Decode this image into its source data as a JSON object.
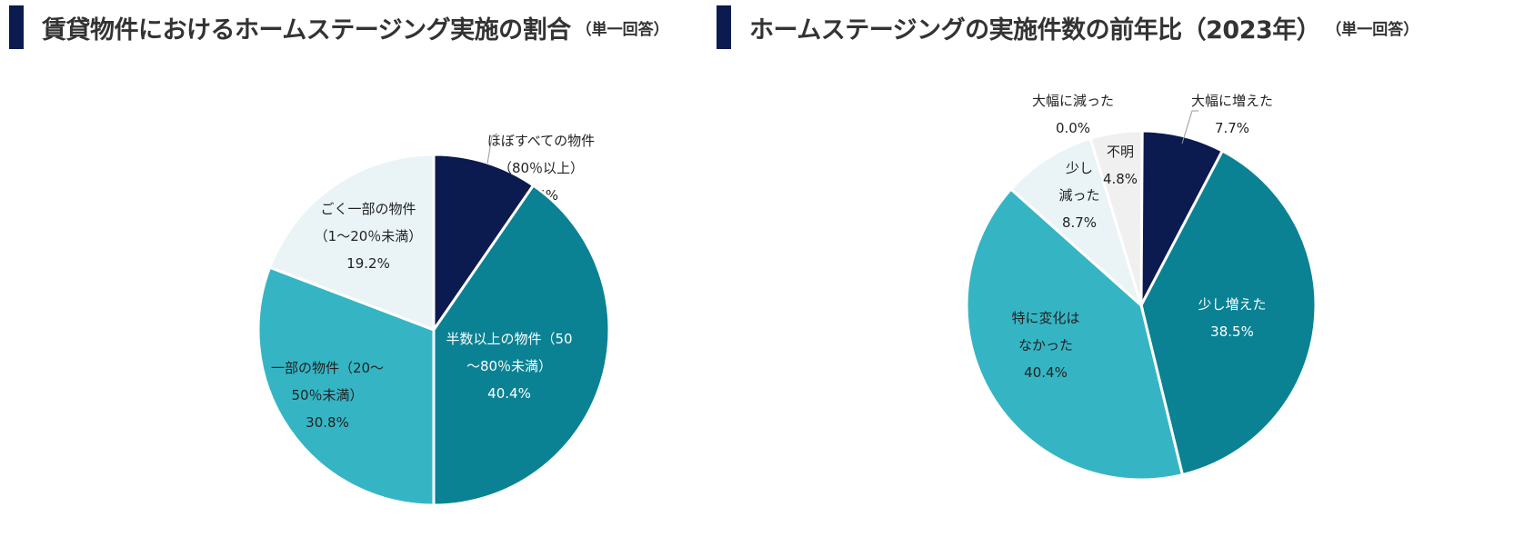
{
  "colors": {
    "navy": "#0b1a4f",
    "dark_teal": "#0a8294",
    "light_teal": "#35b5c4",
    "pale": "#eaf4f7",
    "grey": "#f0f0f0"
  },
  "chart_data": [
    {
      "type": "pie",
      "title": "賃貸物件におけるホームステージング実施の割合",
      "subtitle": "（単一回答）",
      "slices": [
        {
          "label": [
            "ほぼすべての物件",
            "（80％以上）"
          ],
          "value": 9.6,
          "value_label": "9.6%",
          "color": "#0b1a4f"
        },
        {
          "label": [
            "半数以上の物件（50",
            "～80％未満）"
          ],
          "value": 40.4,
          "value_label": "40.4%",
          "color": "#0a8294"
        },
        {
          "label": [
            "一部の物件（20～",
            "50％未満）"
          ],
          "value": 30.8,
          "value_label": "30.8%",
          "color": "#35b5c4"
        },
        {
          "label": [
            "ごく一部の物件",
            "（1～20％未満）"
          ],
          "value": 19.2,
          "value_label": "19.2%",
          "color": "#eaf4f7"
        }
      ]
    },
    {
      "type": "pie",
      "title": "ホームステージングの実施件数の前年比（2023年）",
      "subtitle": "（単一回答）",
      "slices": [
        {
          "label": [
            "大幅に増えた"
          ],
          "value": 7.7,
          "value_label": "7.7%",
          "color": "#0b1a4f"
        },
        {
          "label": [
            "少し増えた"
          ],
          "value": 38.5,
          "value_label": "38.5%",
          "color": "#0a8294"
        },
        {
          "label": [
            "特に変化は",
            "なかった"
          ],
          "value": 40.4,
          "value_label": "40.4%",
          "color": "#35b5c4"
        },
        {
          "label": [
            "大幅に減った"
          ],
          "value": 0.0,
          "value_label": "0.0%",
          "color": "#eaf4f7"
        },
        {
          "label": [
            "少し",
            "減った"
          ],
          "value": 8.7,
          "value_label": "8.7%",
          "color": "#eaf4f7"
        },
        {
          "label": [
            "不明"
          ],
          "value": 4.8,
          "value_label": "4.8%",
          "color": "#f0f0f0"
        }
      ]
    }
  ]
}
